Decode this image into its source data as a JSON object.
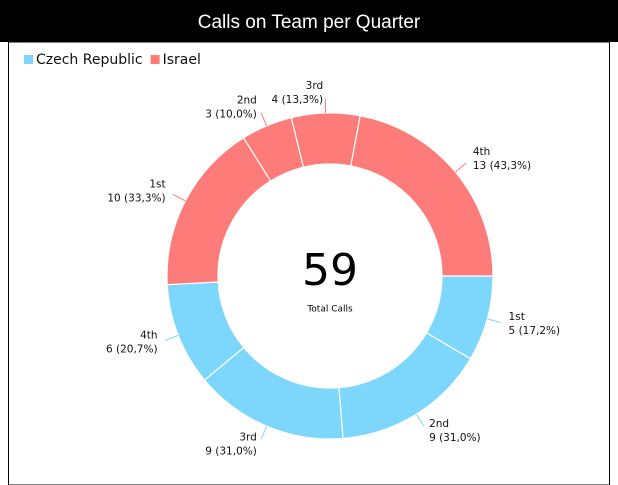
{
  "chart_data": {
    "type": "donut",
    "title": "Calls on Team per Quarter",
    "categories": [
      "1st",
      "2nd",
      "3rd",
      "4th"
    ],
    "series": [
      {
        "name": "Czech Republic",
        "color": "#7dd6fc",
        "values": [
          5,
          9,
          9,
          6
        ],
        "value_labels": [
          "5 (17,2%)",
          "9 (31,0%)",
          "9 (31,0%)",
          "6 (20,7%)"
        ]
      },
      {
        "name": "Israel",
        "color": "#fd7c7a",
        "values": [
          10,
          3,
          4,
          13
        ],
        "value_labels": [
          "10 (33,3%)",
          "3 (10,0%)",
          "4 (13,3%)",
          "13 (43,3%)"
        ]
      }
    ],
    "center_value": 59,
    "center_label": "Total Calls",
    "legend": "top-left"
  }
}
